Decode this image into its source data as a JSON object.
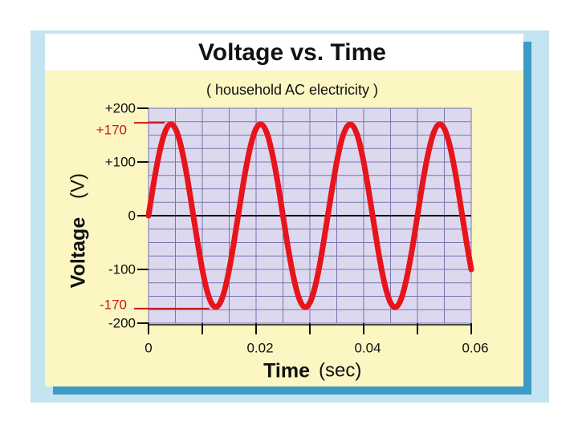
{
  "chart_data": {
    "type": "line",
    "title": "Voltage vs. Time",
    "subtitle": "( household AC electricity )",
    "xlabel": "Time",
    "xunit": "(sec)",
    "ylabel": "Voltage",
    "yunit": "(V)",
    "x": [
      0,
      0.001,
      0.002,
      0.003,
      0.004,
      0.005,
      0.006,
      0.007,
      0.008,
      0.009,
      0.01,
      0.011,
      0.012,
      0.013,
      0.014,
      0.015,
      0.016,
      0.017,
      0.018,
      0.019,
      0.02,
      0.021,
      0.022,
      0.023,
      0.024,
      0.025,
      0.026,
      0.027,
      0.028,
      0.029,
      0.03,
      0.031,
      0.032,
      0.033,
      0.034,
      0.035,
      0.036,
      0.037,
      0.038,
      0.039,
      0.04,
      0.041,
      0.042,
      0.043,
      0.044,
      0.045,
      0.046,
      0.047,
      0.048,
      0.049,
      0.05,
      0.051,
      0.052,
      0.053,
      0.054,
      0.055,
      0.056,
      0.057,
      0.058,
      0.059,
      0.06
    ],
    "series": [
      {
        "color": "#e8141c",
        "values": [
          0,
          63,
          116,
          154,
          170,
          162,
          131,
          82,
          21,
          -42,
          -100,
          -144,
          -167,
          -167,
          -144,
          -100,
          -42,
          21,
          82,
          131,
          162,
          170,
          154,
          116,
          63,
          0,
          -63,
          -116,
          -154,
          -170,
          -162,
          -131,
          -82,
          -21,
          42,
          100,
          144,
          167,
          167,
          144,
          100,
          42,
          -21,
          -82,
          -131,
          -162,
          -170,
          -154,
          -116,
          -63,
          0,
          63,
          116,
          154,
          170,
          162,
          131,
          82,
          21,
          -42,
          -100
        ]
      }
    ],
    "xlim": [
      0,
      0.06
    ],
    "ylim": [
      -200,
      200
    ],
    "xticks": [
      0,
      0.02,
      0.04,
      0.06
    ],
    "xminorticks": [
      0.01,
      0.03,
      0.05
    ],
    "yticks": [
      {
        "value": 200,
        "label": "+200"
      },
      {
        "value": 100,
        "label": "+100"
      },
      0,
      -100,
      -200
    ],
    "annotations": [
      {
        "value": 170,
        "label": "+170",
        "color": "#c8161d"
      },
      {
        "value": -170,
        "label": "-170",
        "color": "#c8161d"
      }
    ],
    "grid": true
  }
}
